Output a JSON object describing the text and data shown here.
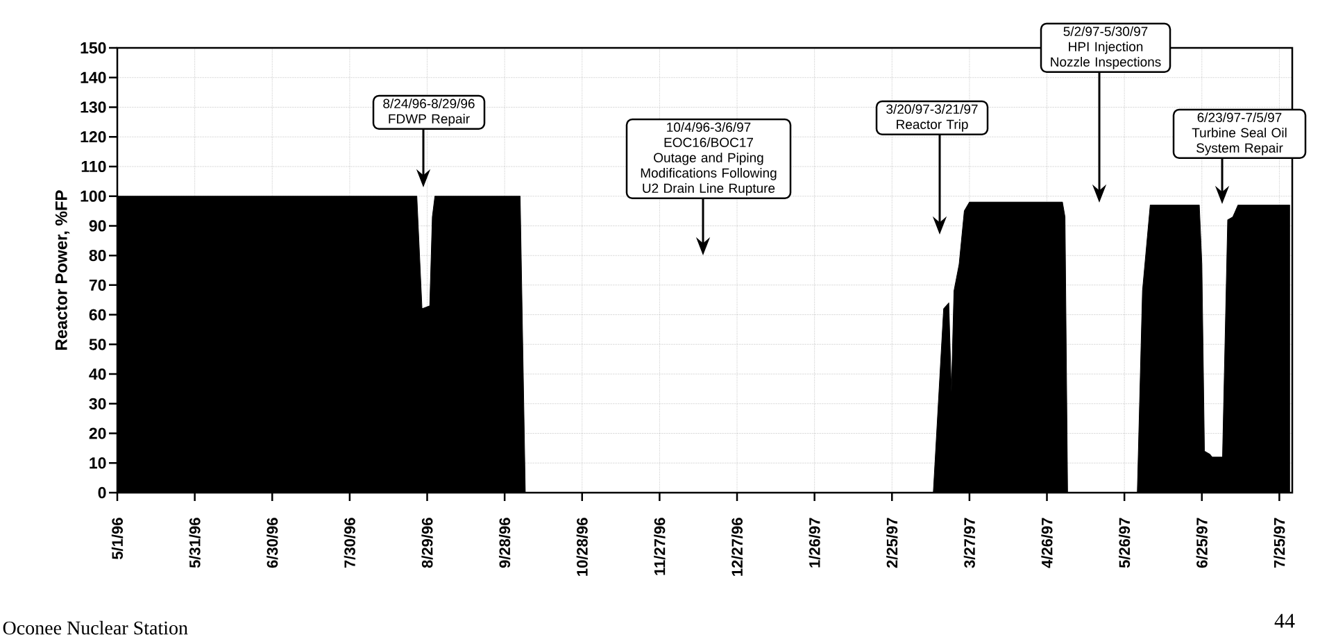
{
  "chart_data": {
    "type": "area",
    "ylabel": "Reactor Power, %FP",
    "x": [
      "1996-05-01",
      "1996-08-25",
      "1996-08-27",
      "1996-08-30",
      "1996-08-31",
      "1996-09-01",
      "1996-10-04",
      "1996-10-06",
      "1997-03-13",
      "1997-03-17",
      "1997-03-19",
      "1997-03-20",
      "1997-03-21",
      "1997-03-23",
      "1997-03-25",
      "1997-03-27",
      "1997-05-02",
      "1997-05-03",
      "1997-05-04",
      "1997-05-31",
      "1997-06-02",
      "1997-06-05",
      "1997-06-24",
      "1997-06-25",
      "1997-06-26",
      "1997-06-28",
      "1997-06-29",
      "1997-07-03",
      "1997-07-05",
      "1997-07-07",
      "1997-07-09",
      "1997-07-29"
    ],
    "values": [
      100,
      100,
      62,
      63,
      93,
      100,
      100,
      0,
      0,
      62,
      64,
      34,
      68,
      77,
      95,
      98,
      98,
      93,
      0,
      0,
      68,
      97,
      97,
      77,
      14,
      13,
      12,
      12,
      92,
      93,
      97,
      97
    ],
    "color": "#000000",
    "xlim": [
      "1996-05-01",
      "1997-07-30"
    ],
    "xticks": [
      {
        "value": "1996-05-01",
        "label": "5/1/96"
      },
      {
        "value": "1996-05-31",
        "label": "5/31/96"
      },
      {
        "value": "1996-06-30",
        "label": "6/30/96"
      },
      {
        "value": "1996-07-30",
        "label": "7/30/96"
      },
      {
        "value": "1996-08-29",
        "label": "8/29/96"
      },
      {
        "value": "1996-09-28",
        "label": "9/28/96"
      },
      {
        "value": "1996-10-28",
        "label": "10/28/96"
      },
      {
        "value": "1996-11-27",
        "label": "11/27/96"
      },
      {
        "value": "1996-12-27",
        "label": "12/27/96"
      },
      {
        "value": "1997-01-26",
        "label": "1/26/97"
      },
      {
        "value": "1997-02-25",
        "label": "2/25/97"
      },
      {
        "value": "1997-03-27",
        "label": "3/27/97"
      },
      {
        "value": "1997-04-26",
        "label": "4/26/97"
      },
      {
        "value": "1997-05-26",
        "label": "5/26/97"
      },
      {
        "value": "1997-06-25",
        "label": "6/25/97"
      },
      {
        "value": "1997-07-25",
        "label": "7/25/97"
      }
    ],
    "ylim": [
      0,
      150
    ],
    "yticks": [
      0,
      10,
      20,
      30,
      40,
      50,
      60,
      70,
      80,
      90,
      100,
      110,
      120,
      130,
      140,
      150
    ],
    "grid": true,
    "annotations": [
      "8/24/96-8/29/96 FDWP Repair",
      "10/4/96-3/6/97 EOC16/BOC17 Outage and Piping Modifications Following U2 Drain Line Rupture",
      "3/20/97-3/21/97 Reactor Trip",
      "5/2/97-5/30/97 HPI Injection Nozzle Inspections",
      "6/23/97-7/5/97 Turbine Seal Oil System Repair",
      "Oconee Nuclear Station",
      "44"
    ]
  }
}
